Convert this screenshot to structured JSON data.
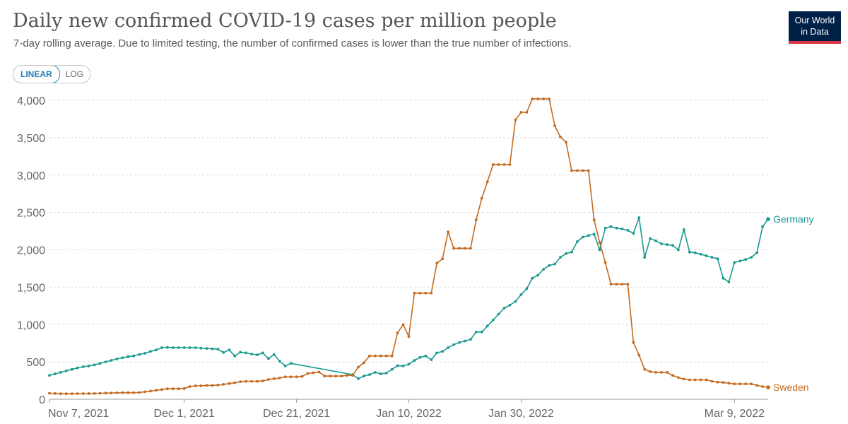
{
  "header": {
    "title": "Daily new confirmed COVID-19 cases per million people",
    "subtitle": "7-day rolling average. Due to limited testing, the number of confirmed cases is lower than the true number of infections.",
    "logo_line1": "Our World",
    "logo_line2": "in Data"
  },
  "controls": {
    "linear_label": "LINEAR",
    "log_label": "LOG",
    "selected": "LINEAR"
  },
  "colors": {
    "germany": "#1a9a8f",
    "sweden": "#c56a1f",
    "grid": "#dddddd"
  },
  "chart_data": {
    "type": "line",
    "title": "Daily new confirmed COVID-19 cases per million people",
    "subtitle": "7-day rolling average. Due to limited testing, the number of confirmed cases is lower than the true number of infections.",
    "xlabel": "",
    "ylabel": "",
    "ylim": [
      0,
      4000
    ],
    "y_ticks": [
      "0",
      "500",
      "1,000",
      "1,500",
      "2,000",
      "2,500",
      "3,000",
      "3,500",
      "4,000"
    ],
    "y_tick_values": [
      0,
      500,
      1000,
      1500,
      2000,
      2500,
      3000,
      3500,
      4000
    ],
    "x_ticks": [
      "Nov 7, 2021",
      "Dec 1, 2021",
      "Dec 21, 2021",
      "Jan 10, 2022",
      "Jan 30, 2022",
      "Mar 9, 2022"
    ],
    "x_tick_dates": [
      "2021-11-07",
      "2021-12-01",
      "2021-12-21",
      "2022-01-10",
      "2022-01-30",
      "2022-03-09"
    ],
    "grid": true,
    "x_range": [
      "2021-11-07",
      "2022-03-09"
    ],
    "series": [
      {
        "name": "Germany",
        "color": "#1a9a8f",
        "points": [
          [
            "2021-11-07",
            320
          ],
          [
            "2021-11-08",
            340
          ],
          [
            "2021-11-09",
            360
          ],
          [
            "2021-11-10",
            380
          ],
          [
            "2021-11-11",
            400
          ],
          [
            "2021-11-12",
            420
          ],
          [
            "2021-11-13",
            435
          ],
          [
            "2021-11-14",
            445
          ],
          [
            "2021-11-15",
            460
          ],
          [
            "2021-11-16",
            480
          ],
          [
            "2021-11-17",
            500
          ],
          [
            "2021-11-18",
            520
          ],
          [
            "2021-11-19",
            540
          ],
          [
            "2021-11-20",
            555
          ],
          [
            "2021-11-21",
            570
          ],
          [
            "2021-11-22",
            580
          ],
          [
            "2021-11-23",
            600
          ],
          [
            "2021-11-24",
            615
          ],
          [
            "2021-11-25",
            640
          ],
          [
            "2021-11-26",
            660
          ],
          [
            "2021-11-27",
            690
          ],
          [
            "2021-11-28",
            695
          ],
          [
            "2021-11-29",
            690
          ],
          [
            "2021-11-30",
            690
          ],
          [
            "2021-12-01",
            690
          ],
          [
            "2021-12-02",
            690
          ],
          [
            "2021-12-03",
            690
          ],
          [
            "2021-12-04",
            685
          ],
          [
            "2021-12-05",
            680
          ],
          [
            "2021-12-06",
            675
          ],
          [
            "2021-12-07",
            670
          ],
          [
            "2021-12-08",
            625
          ],
          [
            "2021-12-09",
            660
          ],
          [
            "2021-12-10",
            580
          ],
          [
            "2021-12-11",
            630
          ],
          [
            "2021-12-12",
            620
          ],
          [
            "2021-12-13",
            605
          ],
          [
            "2021-12-14",
            595
          ],
          [
            "2021-12-15",
            620
          ],
          [
            "2021-12-16",
            545
          ],
          [
            "2021-12-17",
            600
          ],
          [
            "2021-12-18",
            510
          ],
          [
            "2021-12-19",
            445
          ],
          [
            "2021-12-20",
            480
          ],
          [
            "2021-12-31",
            330
          ],
          [
            "2022-01-01",
            275
          ],
          [
            "2022-01-02",
            310
          ],
          [
            "2022-01-03",
            330
          ],
          [
            "2022-01-04",
            360
          ],
          [
            "2022-01-05",
            340
          ],
          [
            "2022-01-06",
            350
          ],
          [
            "2022-01-07",
            400
          ],
          [
            "2022-01-08",
            450
          ],
          [
            "2022-01-09",
            445
          ],
          [
            "2022-01-10",
            470
          ],
          [
            "2022-01-11",
            520
          ],
          [
            "2022-01-12",
            560
          ],
          [
            "2022-01-13",
            580
          ],
          [
            "2022-01-14",
            530
          ],
          [
            "2022-01-15",
            620
          ],
          [
            "2022-01-16",
            640
          ],
          [
            "2022-01-17",
            690
          ],
          [
            "2022-01-18",
            730
          ],
          [
            "2022-01-19",
            760
          ],
          [
            "2022-01-20",
            780
          ],
          [
            "2022-01-21",
            800
          ],
          [
            "2022-01-22",
            900
          ],
          [
            "2022-01-23",
            900
          ],
          [
            "2022-01-24",
            980
          ],
          [
            "2022-01-25",
            1060
          ],
          [
            "2022-01-26",
            1140
          ],
          [
            "2022-01-27",
            1220
          ],
          [
            "2022-01-28",
            1260
          ],
          [
            "2022-01-29",
            1310
          ],
          [
            "2022-01-30",
            1400
          ],
          [
            "2022-01-31",
            1480
          ],
          [
            "2022-02-01",
            1620
          ],
          [
            "2022-02-02",
            1660
          ],
          [
            "2022-02-03",
            1740
          ],
          [
            "2022-02-04",
            1790
          ],
          [
            "2022-02-05",
            1810
          ],
          [
            "2022-02-06",
            1900
          ],
          [
            "2022-02-07",
            1950
          ],
          [
            "2022-02-08",
            1970
          ],
          [
            "2022-02-09",
            2110
          ],
          [
            "2022-02-10",
            2170
          ],
          [
            "2022-02-11",
            2190
          ],
          [
            "2022-02-12",
            2210
          ],
          [
            "2022-02-13",
            2000
          ],
          [
            "2022-02-14",
            2290
          ],
          [
            "2022-02-15",
            2310
          ],
          [
            "2022-02-16",
            2290
          ],
          [
            "2022-02-17",
            2280
          ],
          [
            "2022-02-18",
            2260
          ],
          [
            "2022-02-19",
            2220
          ],
          [
            "2022-02-20",
            2430
          ],
          [
            "2022-02-21",
            1900
          ],
          [
            "2022-02-22",
            2150
          ],
          [
            "2022-02-23",
            2120
          ],
          [
            "2022-02-24",
            2080
          ],
          [
            "2022-02-25",
            2070
          ],
          [
            "2022-02-26",
            2060
          ],
          [
            "2022-02-27",
            2000
          ],
          [
            "2022-02-28",
            2270
          ],
          [
            "2022-03-01",
            1970
          ],
          [
            "2022-03-02",
            1960
          ],
          [
            "2022-03-03",
            1940
          ],
          [
            "2022-03-04",
            1920
          ],
          [
            "2022-03-05",
            1900
          ],
          [
            "2022-03-06",
            1880
          ],
          [
            "2022-03-07",
            1620
          ],
          [
            "2022-03-08",
            1570
          ],
          [
            "2022-03-09",
            1830
          ],
          [
            "2022-03-10",
            1850
          ],
          [
            "2022-03-11",
            1870
          ],
          [
            "2022-03-12",
            1900
          ],
          [
            "2022-03-13",
            1960
          ],
          [
            "2022-03-14",
            2310
          ],
          [
            "2022-03-15",
            2410
          ]
        ]
      },
      {
        "name": "Sweden",
        "color": "#c56a1f",
        "points": [
          [
            "2021-11-07",
            80
          ],
          [
            "2021-11-08",
            78
          ],
          [
            "2021-11-09",
            74
          ],
          [
            "2021-11-10",
            74
          ],
          [
            "2021-11-11",
            75
          ],
          [
            "2021-11-12",
            76
          ],
          [
            "2021-11-13",
            76
          ],
          [
            "2021-11-14",
            77
          ],
          [
            "2021-11-15",
            78
          ],
          [
            "2021-11-16",
            80
          ],
          [
            "2021-11-17",
            82
          ],
          [
            "2021-11-18",
            84
          ],
          [
            "2021-11-19",
            86
          ],
          [
            "2021-11-20",
            88
          ],
          [
            "2021-11-21",
            88
          ],
          [
            "2021-11-22",
            88
          ],
          [
            "2021-11-23",
            90
          ],
          [
            "2021-11-24",
            100
          ],
          [
            "2021-11-25",
            110
          ],
          [
            "2021-11-26",
            120
          ],
          [
            "2021-11-27",
            130
          ],
          [
            "2021-11-28",
            140
          ],
          [
            "2021-11-29",
            140
          ],
          [
            "2021-11-30",
            140
          ],
          [
            "2021-12-01",
            145
          ],
          [
            "2021-12-02",
            170
          ],
          [
            "2021-12-03",
            180
          ],
          [
            "2021-12-04",
            180
          ],
          [
            "2021-12-05",
            185
          ],
          [
            "2021-12-06",
            185
          ],
          [
            "2021-12-07",
            190
          ],
          [
            "2021-12-08",
            200
          ],
          [
            "2021-12-09",
            210
          ],
          [
            "2021-12-10",
            220
          ],
          [
            "2021-12-11",
            235
          ],
          [
            "2021-12-12",
            240
          ],
          [
            "2021-12-13",
            240
          ],
          [
            "2021-12-14",
            240
          ],
          [
            "2021-12-15",
            245
          ],
          [
            "2021-12-16",
            265
          ],
          [
            "2021-12-17",
            275
          ],
          [
            "2021-12-18",
            285
          ],
          [
            "2021-12-19",
            300
          ],
          [
            "2021-12-20",
            300
          ],
          [
            "2021-12-21",
            300
          ],
          [
            "2021-12-22",
            305
          ],
          [
            "2021-12-23",
            345
          ],
          [
            "2021-12-24",
            355
          ],
          [
            "2021-12-25",
            365
          ],
          [
            "2021-12-26",
            310
          ],
          [
            "2021-12-27",
            310
          ],
          [
            "2021-12-28",
            310
          ],
          [
            "2021-12-29",
            310
          ],
          [
            "2021-12-30",
            320
          ],
          [
            "2021-12-31",
            320
          ],
          [
            "2022-01-01",
            430
          ],
          [
            "2022-01-02",
            490
          ],
          [
            "2022-01-03",
            580
          ],
          [
            "2022-01-04",
            580
          ],
          [
            "2022-01-05",
            580
          ],
          [
            "2022-01-06",
            580
          ],
          [
            "2022-01-07",
            580
          ],
          [
            "2022-01-08",
            890
          ],
          [
            "2022-01-09",
            1000
          ],
          [
            "2022-01-10",
            840
          ],
          [
            "2022-01-11",
            1420
          ],
          [
            "2022-01-12",
            1420
          ],
          [
            "2022-01-13",
            1420
          ],
          [
            "2022-01-14",
            1420
          ],
          [
            "2022-01-15",
            1820
          ],
          [
            "2022-01-16",
            1880
          ],
          [
            "2022-01-17",
            2240
          ],
          [
            "2022-01-18",
            2020
          ],
          [
            "2022-01-19",
            2020
          ],
          [
            "2022-01-20",
            2020
          ],
          [
            "2022-01-21",
            2020
          ],
          [
            "2022-01-22",
            2400
          ],
          [
            "2022-01-23",
            2690
          ],
          [
            "2022-01-24",
            2910
          ],
          [
            "2022-01-25",
            3140
          ],
          [
            "2022-01-26",
            3140
          ],
          [
            "2022-01-27",
            3140
          ],
          [
            "2022-01-28",
            3140
          ],
          [
            "2022-01-29",
            3740
          ],
          [
            "2022-01-30",
            3840
          ],
          [
            "2022-01-31",
            3840
          ],
          [
            "2022-02-01",
            4020
          ],
          [
            "2022-02-02",
            4020
          ],
          [
            "2022-02-03",
            4020
          ],
          [
            "2022-02-04",
            4020
          ],
          [
            "2022-02-05",
            3660
          ],
          [
            "2022-02-06",
            3510
          ],
          [
            "2022-02-07",
            3440
          ],
          [
            "2022-02-08",
            3060
          ],
          [
            "2022-02-09",
            3060
          ],
          [
            "2022-02-10",
            3060
          ],
          [
            "2022-02-11",
            3060
          ],
          [
            "2022-02-12",
            2400
          ],
          [
            "2022-02-13",
            2100
          ],
          [
            "2022-02-14",
            1830
          ],
          [
            "2022-02-15",
            1540
          ],
          [
            "2022-02-16",
            1540
          ],
          [
            "2022-02-17",
            1540
          ],
          [
            "2022-02-18",
            1540
          ],
          [
            "2022-02-19",
            760
          ],
          [
            "2022-02-20",
            590
          ],
          [
            "2022-02-21",
            400
          ],
          [
            "2022-02-22",
            370
          ],
          [
            "2022-02-23",
            360
          ],
          [
            "2022-02-24",
            360
          ],
          [
            "2022-02-25",
            360
          ],
          [
            "2022-02-26",
            320
          ],
          [
            "2022-02-27",
            290
          ],
          [
            "2022-02-28",
            270
          ],
          [
            "2022-03-01",
            260
          ],
          [
            "2022-03-02",
            260
          ],
          [
            "2022-03-03",
            260
          ],
          [
            "2022-03-04",
            260
          ],
          [
            "2022-03-05",
            240
          ],
          [
            "2022-03-06",
            230
          ],
          [
            "2022-03-07",
            225
          ],
          [
            "2022-03-08",
            215
          ],
          [
            "2022-03-09",
            205
          ],
          [
            "2022-03-10",
            205
          ],
          [
            "2022-03-11",
            205
          ],
          [
            "2022-03-12",
            205
          ],
          [
            "2022-03-13",
            185
          ],
          [
            "2022-03-14",
            170
          ],
          [
            "2022-03-15",
            160
          ]
        ]
      }
    ]
  }
}
